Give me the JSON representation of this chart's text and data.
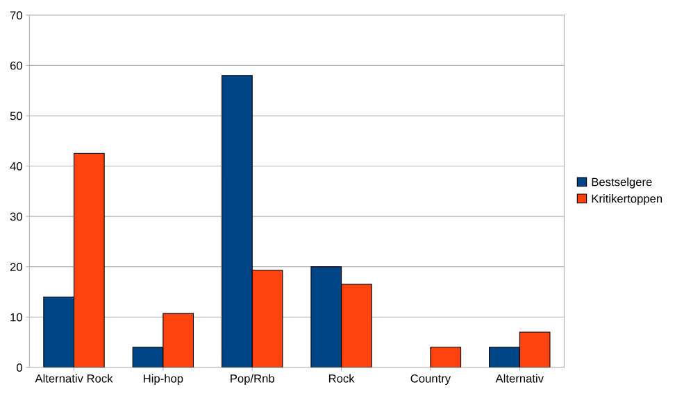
{
  "chart_data": {
    "type": "bar",
    "categories": [
      "Alternativ Rock",
      "Hip-hop",
      "Pop/Rnb",
      "Rock",
      "Country",
      "Alternativ"
    ],
    "series": [
      {
        "name": "Bestselgere",
        "color": "#004586",
        "values": [
          14,
          4,
          58,
          20,
          null,
          4
        ]
      },
      {
        "name": "Kritikertoppen",
        "color": "#ff420e",
        "values": [
          42.5,
          10.7,
          19.3,
          16.5,
          4,
          7
        ]
      }
    ],
    "ylim": [
      0,
      70
    ],
    "yticks": [
      0,
      10,
      20,
      30,
      40,
      50,
      60,
      70
    ],
    "grid": "y",
    "legend": "right"
  }
}
